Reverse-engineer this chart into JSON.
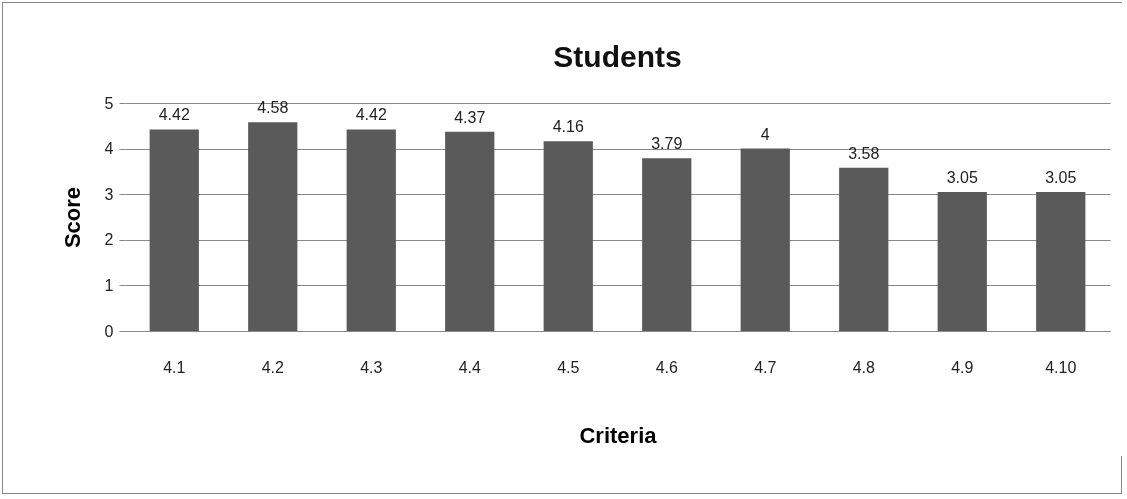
{
  "chart_data": {
    "type": "bar",
    "title": "Students",
    "xlabel": "Criteria",
    "ylabel": "Score",
    "categories": [
      "4.1",
      "4.2",
      "4.3",
      "4.4",
      "4.5",
      "4.6",
      "4.7",
      "4.8",
      "4.9",
      "4.10"
    ],
    "values": [
      4.42,
      4.58,
      4.42,
      4.37,
      4.16,
      3.79,
      4,
      3.58,
      3.05,
      3.05
    ],
    "color": "#5a5a5a",
    "ylim": [
      0,
      5
    ],
    "yticks": [
      0,
      1,
      2,
      3,
      4,
      5
    ],
    "grid": "y",
    "data_labels": true
  }
}
